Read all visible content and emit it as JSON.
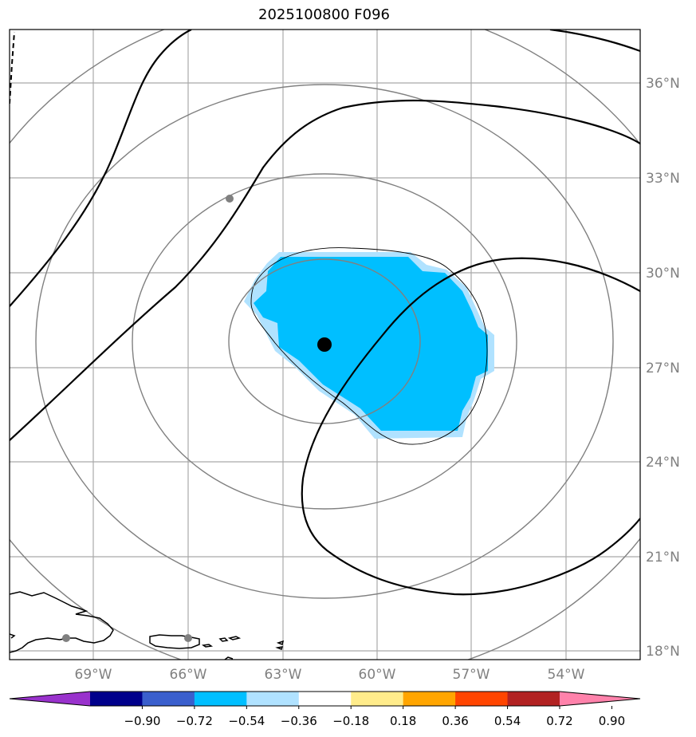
{
  "title": "2025100800 F096",
  "map": {
    "lat_labels": [
      "36°N",
      "33°N",
      "30°N",
      "27°N",
      "24°N",
      "21°N",
      "18°N"
    ],
    "lon_labels": [
      "69°W",
      "66°W",
      "63°W",
      "60°W",
      "57°W",
      "54°W"
    ],
    "gridline_color": "#a9a9a9",
    "label_color": "#808080"
  },
  "colorbar": {
    "colors": [
      "#9932cc",
      "#00008b",
      "#3a5fcd",
      "#00bfff",
      "#b0e2ff",
      "#ffffff",
      "#ffec8b",
      "#ffa500",
      "#ff4500",
      "#b22222",
      "#ff82ab"
    ],
    "ticks": [
      "−0.90",
      "−0.72",
      "−0.54",
      "−0.36",
      "−0.18",
      "0.18",
      "0.36",
      "0.54",
      "0.72",
      "0.90"
    ]
  }
}
